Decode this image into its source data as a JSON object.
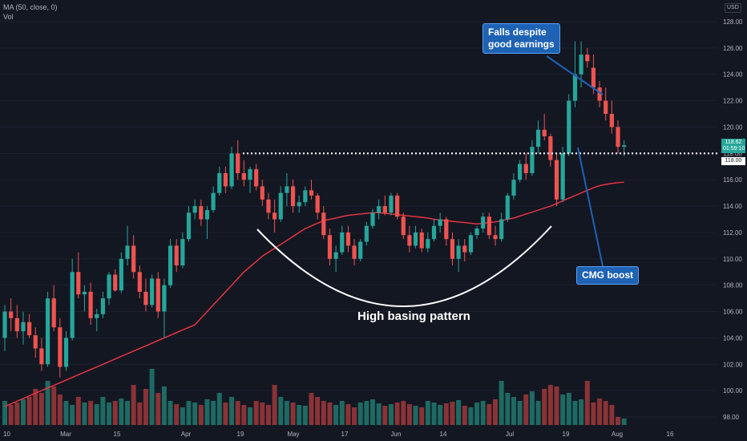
{
  "legend": {
    "ma_label": "MA (50, close, 0)",
    "vol_label": "Vol"
  },
  "currency": "USD",
  "last_price_tag": {
    "price": "118.62",
    "countdown": "01:59:10"
  },
  "breakout_tag": "118.00",
  "annotations": {
    "earnings": "Falls despite\ngood earnings",
    "cmg": "CMG boost",
    "pattern": "High basing pattern"
  },
  "colors": {
    "background": "#131722",
    "up": "#26a69a",
    "down": "#ef5350",
    "ma": "#f23645",
    "callout_bg": "#1e62b4",
    "breakout_line": "#ffffff"
  },
  "chart_data": {
    "type": "candlestick",
    "price_axis": {
      "ticks": [
        "128.00",
        "126.00",
        "124.00",
        "122.00",
        "120.00",
        "118.00",
        "116.00",
        "114.00",
        "112.00",
        "110.00",
        "108.00",
        "106.00",
        "104.00",
        "102.00",
        "100.00",
        "98.00"
      ],
      "ylim": [
        97.6,
        128.6
      ]
    },
    "time_axis": {
      "ticks": [
        "10",
        "Mar",
        "15",
        "Apr",
        "19",
        "May",
        "17",
        "Jun",
        "14",
        "Jul",
        "19",
        "Aug",
        "16"
      ]
    },
    "breakout_level": 118.0,
    "candles": [
      [
        104.0,
        106.5,
        103.0,
        106.0
      ],
      [
        106.0,
        107.0,
        104.5,
        105.5
      ],
      [
        105.5,
        106.5,
        104.0,
        104.5
      ],
      [
        104.5,
        106.0,
        103.5,
        105.2
      ],
      [
        105.2,
        105.8,
        104.0,
        104.2
      ],
      [
        104.2,
        104.8,
        102.5,
        103.2
      ],
      [
        103.2,
        104.0,
        101.5,
        102.0
      ],
      [
        102.0,
        107.5,
        101.8,
        107.0
      ],
      [
        107.0,
        108.0,
        104.5,
        104.8
      ],
      [
        104.8,
        105.5,
        101.0,
        101.8
      ],
      [
        101.8,
        104.5,
        101.5,
        104.0
      ],
      [
        104.0,
        110.0,
        103.8,
        109.0
      ],
      [
        109.0,
        110.5,
        107.0,
        107.3
      ],
      [
        107.3,
        108.0,
        106.0,
        107.5
      ],
      [
        107.5,
        108.2,
        105.0,
        105.5
      ],
      [
        105.5,
        106.2,
        104.5,
        105.8
      ],
      [
        105.8,
        107.5,
        105.5,
        107.0
      ],
      [
        107.0,
        109.0,
        106.5,
        108.8
      ],
      [
        108.8,
        109.2,
        107.5,
        107.6
      ],
      [
        107.6,
        110.5,
        107.4,
        110.0
      ],
      [
        110.0,
        112.5,
        109.5,
        111.0
      ],
      [
        111.0,
        111.8,
        108.5,
        109.0
      ],
      [
        109.0,
        109.5,
        107.0,
        107.5
      ],
      [
        107.5,
        108.5,
        106.0,
        106.5
      ],
      [
        106.5,
        108.8,
        106.3,
        108.5
      ],
      [
        108.5,
        109.0,
        105.5,
        106.0
      ],
      [
        106.0,
        108.5,
        104.0,
        108.0
      ],
      [
        108.0,
        111.5,
        107.8,
        111.0
      ],
      [
        111.0,
        111.5,
        109.0,
        109.5
      ],
      [
        109.5,
        112.0,
        109.3,
        111.5
      ],
      [
        111.5,
        114.0,
        111.3,
        113.5
      ],
      [
        113.5,
        114.5,
        113.0,
        114.0
      ],
      [
        114.0,
        114.5,
        112.5,
        113.0
      ],
      [
        113.0,
        114.0,
        111.5,
        113.7
      ],
      [
        113.7,
        115.5,
        113.5,
        115.0
      ],
      [
        115.0,
        117.0,
        114.8,
        116.5
      ],
      [
        116.5,
        117.0,
        115.0,
        115.5
      ],
      [
        115.5,
        118.5,
        115.3,
        118.0
      ],
      [
        118.0,
        119.0,
        116.0,
        116.5
      ],
      [
        116.5,
        117.5,
        115.5,
        116.0
      ],
      [
        116.0,
        117.0,
        115.0,
        116.8
      ],
      [
        116.8,
        117.2,
        115.2,
        115.5
      ],
      [
        115.5,
        116.0,
        114.0,
        114.5
      ],
      [
        114.5,
        115.0,
        113.0,
        113.5
      ],
      [
        113.5,
        114.5,
        112.0,
        113.0
      ],
      [
        113.0,
        115.5,
        112.8,
        115.0
      ],
      [
        115.0,
        116.5,
        114.0,
        115.5
      ],
      [
        115.5,
        116.0,
        113.5,
        114.0
      ],
      [
        114.0,
        114.8,
        113.5,
        114.3
      ],
      [
        114.3,
        115.5,
        114.0,
        115.2
      ],
      [
        115.2,
        116.0,
        114.5,
        114.8
      ],
      [
        114.8,
        115.0,
        113.0,
        113.5
      ],
      [
        113.5,
        114.0,
        111.5,
        111.8
      ],
      [
        111.8,
        112.3,
        109.5,
        110.0
      ],
      [
        110.0,
        111.0,
        109.0,
        110.5
      ],
      [
        110.5,
        112.5,
        110.3,
        112.0
      ],
      [
        112.0,
        112.5,
        110.5,
        111.0
      ],
      [
        111.0,
        111.5,
        109.5,
        110.0
      ],
      [
        110.0,
        111.5,
        109.8,
        111.3
      ],
      [
        111.3,
        112.8,
        111.0,
        112.5
      ],
      [
        112.5,
        113.8,
        112.3,
        113.5
      ],
      [
        113.5,
        114.5,
        113.0,
        114.0
      ],
      [
        114.0,
        114.8,
        113.3,
        113.5
      ],
      [
        113.5,
        115.0,
        113.3,
        114.8
      ],
      [
        114.8,
        115.0,
        113.0,
        113.2
      ],
      [
        113.2,
        113.5,
        111.5,
        111.8
      ],
      [
        111.8,
        112.5,
        110.5,
        111.0
      ],
      [
        111.0,
        112.5,
        110.8,
        112.0
      ],
      [
        112.0,
        112.3,
        110.5,
        110.8
      ],
      [
        110.8,
        112.0,
        110.5,
        111.5
      ],
      [
        111.5,
        113.0,
        111.3,
        112.5
      ],
      [
        112.5,
        113.5,
        112.0,
        113.0
      ],
      [
        113.0,
        113.2,
        111.0,
        111.5
      ],
      [
        111.5,
        112.0,
        109.5,
        110.0
      ],
      [
        110.0,
        111.5,
        109.0,
        111.0
      ],
      [
        111.0,
        111.5,
        109.8,
        110.5
      ],
      [
        110.5,
        112.0,
        110.3,
        111.8
      ],
      [
        111.8,
        112.5,
        111.5,
        112.3
      ],
      [
        112.3,
        113.5,
        112.0,
        113.2
      ],
      [
        113.2,
        113.5,
        111.5,
        111.8
      ],
      [
        111.8,
        112.5,
        111.0,
        111.5
      ],
      [
        111.5,
        113.5,
        111.3,
        113.0
      ],
      [
        113.0,
        115.0,
        112.8,
        114.8
      ],
      [
        114.8,
        116.5,
        114.5,
        116.0
      ],
      [
        116.0,
        117.5,
        115.8,
        117.2
      ],
      [
        117.2,
        118.0,
        116.0,
        116.5
      ],
      [
        116.5,
        119.0,
        116.3,
        118.5
      ],
      [
        118.5,
        120.5,
        118.0,
        119.8
      ],
      [
        119.8,
        121.0,
        119.0,
        119.3
      ],
      [
        119.3,
        119.5,
        117.0,
        117.5
      ],
      [
        117.5,
        118.0,
        114.0,
        114.5
      ],
      [
        114.5,
        118.5,
        114.3,
        118.0
      ],
      [
        118.0,
        122.5,
        117.8,
        122.0
      ],
      [
        122.0,
        126.5,
        121.5,
        124.0
      ],
      [
        124.0,
        126.5,
        123.0,
        125.5
      ],
      [
        125.5,
        126.0,
        124.5,
        125.0
      ],
      [
        124.5,
        125.5,
        122.5,
        123.0
      ],
      [
        123.0,
        123.5,
        121.5,
        122.0
      ],
      [
        122.0,
        123.0,
        120.5,
        121.0
      ],
      [
        121.0,
        122.0,
        119.5,
        120.0
      ],
      [
        120.0,
        120.5,
        118.0,
        118.5
      ],
      [
        118.5,
        119.0,
        117.8,
        118.62
      ]
    ],
    "volume": [
      0.3,
      0.25,
      0.28,
      0.32,
      0.35,
      0.45,
      0.4,
      0.55,
      0.48,
      0.38,
      0.3,
      0.25,
      0.35,
      0.28,
      0.3,
      0.26,
      0.35,
      0.28,
      0.3,
      0.33,
      0.3,
      0.5,
      0.28,
      0.45,
      0.7,
      0.4,
      0.48,
      0.3,
      0.26,
      0.22,
      0.3,
      0.28,
      0.25,
      0.32,
      0.3,
      0.4,
      0.28,
      0.35,
      0.3,
      0.25,
      0.22,
      0.3,
      0.28,
      0.25,
      0.5,
      0.35,
      0.3,
      0.28,
      0.25,
      0.24,
      0.4,
      0.35,
      0.3,
      0.28,
      0.25,
      0.3,
      0.26,
      0.22,
      0.28,
      0.3,
      0.32,
      0.27,
      0.24,
      0.26,
      0.28,
      0.3,
      0.26,
      0.24,
      0.22,
      0.3,
      0.28,
      0.25,
      0.27,
      0.29,
      0.31,
      0.24,
      0.22,
      0.28,
      0.3,
      0.26,
      0.32,
      0.55,
      0.4,
      0.35,
      0.3,
      0.38,
      0.42,
      0.3,
      0.45,
      0.5,
      0.48,
      0.38,
      0.4,
      0.3,
      0.32,
      0.55,
      0.28,
      0.33,
      0.3,
      0.25,
      0.1,
      0.08
    ],
    "ma_50": [
      98.8,
      99.0,
      99.2,
      99.4,
      99.6,
      99.8,
      100.0,
      100.2,
      100.4,
      100.6,
      100.8,
      101.0,
      101.2,
      101.4,
      101.6,
      101.8,
      102.0,
      102.2,
      102.4,
      102.6,
      102.8,
      103.0,
      103.2,
      103.4,
      103.6,
      103.8,
      104.0,
      104.2,
      104.4,
      104.6,
      104.8,
      105.0,
      105.5,
      106.0,
      106.5,
      107.0,
      107.5,
      108.0,
      108.5,
      109.0,
      109.4,
      109.8,
      110.2,
      110.5,
      110.8,
      111.1,
      111.4,
      111.7,
      112.0,
      112.3,
      112.5,
      112.7,
      112.9,
      113.0,
      113.1,
      113.2,
      113.3,
      113.35,
      113.4,
      113.45,
      113.5,
      113.5,
      113.45,
      113.4,
      113.35,
      113.3,
      113.25,
      113.2,
      113.15,
      113.1,
      113.0,
      112.95,
      112.9,
      112.85,
      112.8,
      112.75,
      112.7,
      112.65,
      112.7,
      112.75,
      112.8,
      112.9,
      113.0,
      113.1,
      113.25,
      113.4,
      113.55,
      113.7,
      113.85,
      114.0,
      114.2,
      114.4,
      114.6,
      114.8,
      115.0,
      115.2,
      115.4,
      115.55,
      115.65,
      115.72,
      115.78,
      115.82
    ]
  }
}
